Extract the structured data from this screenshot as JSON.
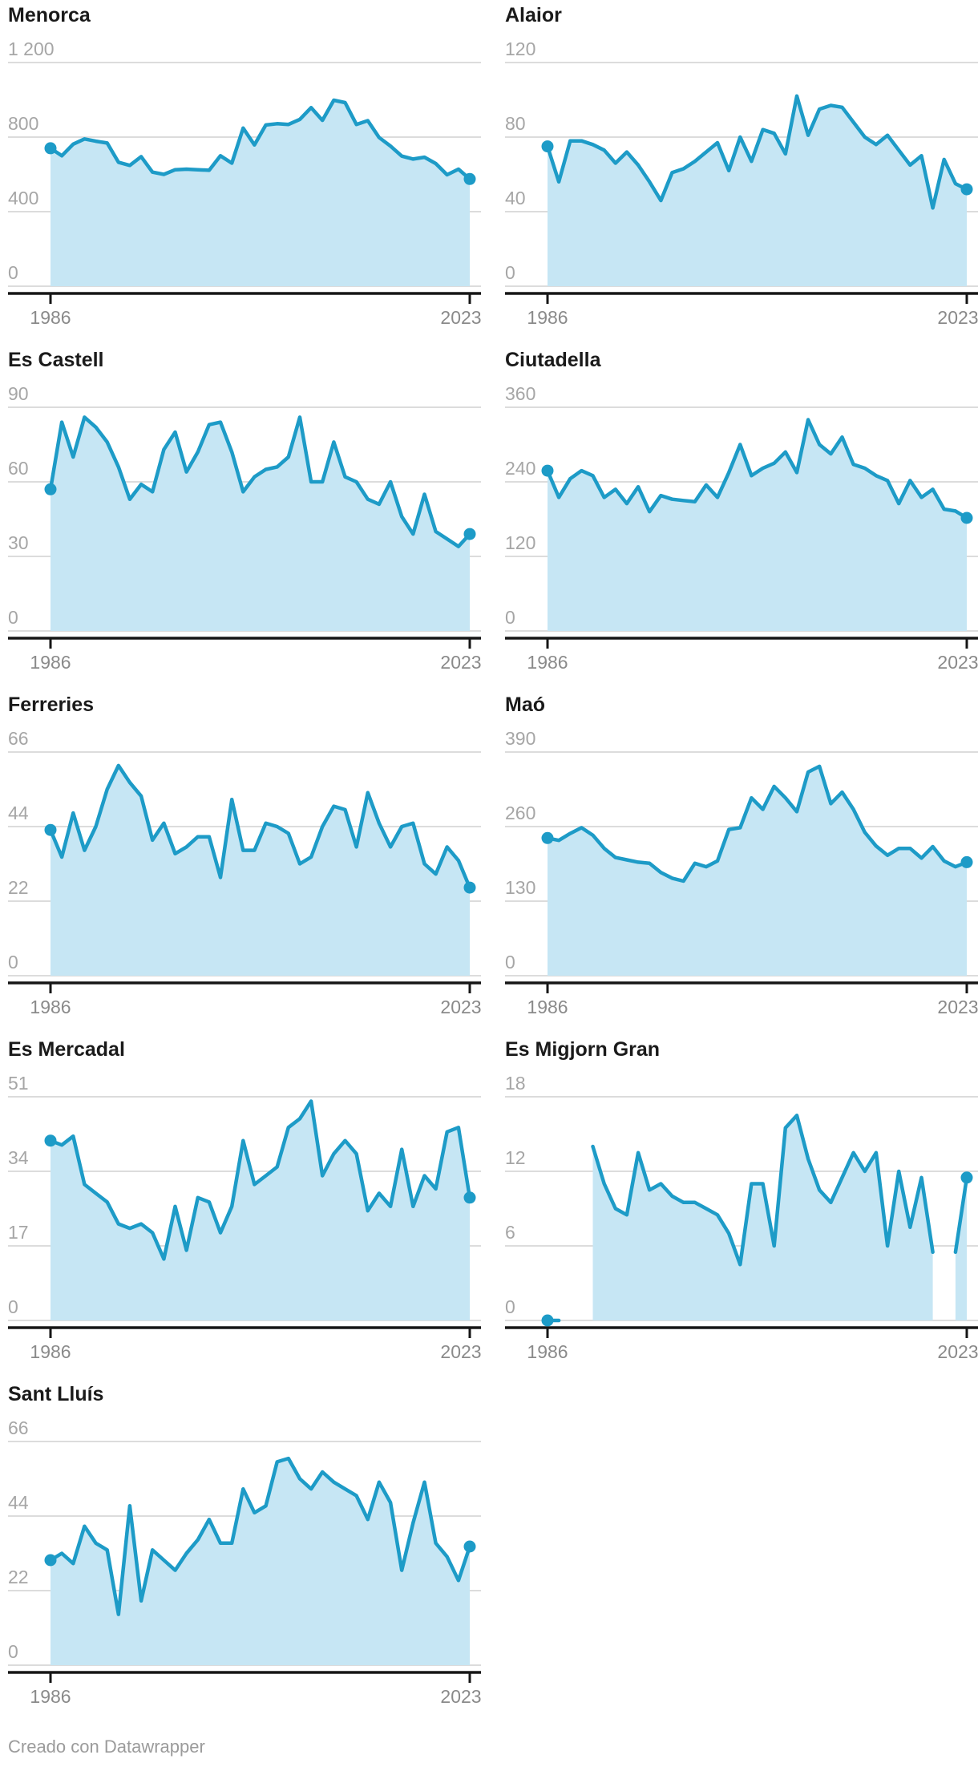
{
  "footer": {
    "credit": "Creado con Datawrapper"
  },
  "colors": {
    "line": "#1d9bc7",
    "fill": "#c6e6f4",
    "grid": "#dcdcdc",
    "axis": "#161616",
    "title": "#1a1a1a",
    "y_label": "#a6a6a6",
    "x_label": "#8a8a8a",
    "credit": "#9b9b9b"
  },
  "x_axis": {
    "start_label": "1986",
    "end_label": "2023",
    "start_year": 1986,
    "end_year": 2023
  },
  "chart_data": [
    {
      "type": "area",
      "title": "Menorca",
      "xlabel": "",
      "ylabel": "",
      "x_start": 1986,
      "x_end": 2023,
      "ylim": [
        0,
        1200
      ],
      "grid": true,
      "y_gridlines": [
        1200,
        800,
        400,
        0
      ],
      "y_tick_labels": [
        "1 200",
        "800",
        "400",
        "0"
      ],
      "x_tick_labels": [
        "1986",
        "2023"
      ],
      "endpoint_dots": true,
      "values": [
        740,
        700,
        762,
        790,
        778,
        768,
        665,
        648,
        695,
        612,
        600,
        625,
        628,
        625,
        622,
        700,
        660,
        848,
        758,
        865,
        872,
        868,
        895,
        958,
        890,
        998,
        985,
        868,
        888,
        798,
        752,
        698,
        682,
        692,
        658,
        598,
        628,
        575
      ]
    },
    {
      "type": "area",
      "title": "Alaior",
      "xlabel": "",
      "ylabel": "",
      "x_start": 1986,
      "x_end": 2023,
      "ylim": [
        0,
        120
      ],
      "grid": true,
      "y_gridlines": [
        120,
        80,
        40,
        0
      ],
      "y_tick_labels": [
        "120",
        "80",
        "40",
        "0"
      ],
      "x_tick_labels": [
        "1986",
        "2023"
      ],
      "endpoint_dots": true,
      "values": [
        75,
        56,
        78,
        78,
        76,
        73,
        66,
        72,
        65,
        56,
        46,
        61,
        63,
        67,
        72,
        77,
        62,
        80,
        67,
        84,
        82,
        71,
        102,
        81,
        95,
        97,
        96,
        88,
        80,
        76,
        81,
        73,
        65,
        70,
        42,
        68,
        55,
        52
      ]
    },
    {
      "type": "area",
      "title": "Es Castell",
      "xlabel": "",
      "ylabel": "",
      "x_start": 1986,
      "x_end": 2023,
      "ylim": [
        0,
        90
      ],
      "grid": true,
      "y_gridlines": [
        90,
        60,
        30,
        0
      ],
      "y_tick_labels": [
        "90",
        "60",
        "30",
        "0"
      ],
      "x_tick_labels": [
        "1986",
        "2023"
      ],
      "endpoint_dots": true,
      "values": [
        57,
        84,
        70,
        86,
        82,
        76,
        66,
        53,
        59,
        56,
        73,
        80,
        64,
        72,
        83,
        84,
        72,
        56,
        62,
        65,
        66,
        70,
        86,
        60,
        60,
        76,
        62,
        60,
        53,
        51,
        60,
        46,
        39,
        55,
        40,
        37,
        34,
        39
      ]
    },
    {
      "type": "area",
      "title": "Ciutadella",
      "xlabel": "",
      "ylabel": "",
      "x_start": 1986,
      "x_end": 2023,
      "ylim": [
        0,
        360
      ],
      "grid": true,
      "y_gridlines": [
        360,
        240,
        120,
        0
      ],
      "y_tick_labels": [
        "360",
        "240",
        "120",
        "0"
      ],
      "x_tick_labels": [
        "1986",
        "2023"
      ],
      "endpoint_dots": true,
      "values": [
        258,
        215,
        245,
        258,
        250,
        215,
        228,
        205,
        232,
        192,
        218,
        212,
        210,
        208,
        235,
        215,
        255,
        300,
        250,
        262,
        270,
        288,
        255,
        340,
        300,
        285,
        312,
        268,
        262,
        250,
        242,
        205,
        242,
        215,
        228,
        196,
        193,
        182
      ]
    },
    {
      "type": "area",
      "title": "Ferreries",
      "xlabel": "",
      "ylabel": "",
      "x_start": 1986,
      "x_end": 2023,
      "ylim": [
        0,
        66
      ],
      "grid": true,
      "y_gridlines": [
        66,
        44,
        22,
        0
      ],
      "y_tick_labels": [
        "66",
        "44",
        "22",
        "0"
      ],
      "x_tick_labels": [
        "1986",
        "2023"
      ],
      "endpoint_dots": true,
      "values": [
        43,
        35,
        48,
        37,
        44,
        55,
        62,
        57,
        53,
        40,
        45,
        36,
        38,
        41,
        41,
        29,
        52,
        37,
        37,
        45,
        44,
        42,
        33,
        35,
        44,
        50,
        49,
        38,
        54,
        45,
        38,
        44,
        45,
        33,
        30,
        38,
        34,
        26
      ]
    },
    {
      "type": "area",
      "title": "Maó",
      "xlabel": "",
      "ylabel": "",
      "x_start": 1986,
      "x_end": 2023,
      "ylim": [
        0,
        390
      ],
      "grid": true,
      "y_gridlines": [
        390,
        260,
        130,
        0
      ],
      "y_tick_labels": [
        "390",
        "260",
        "130",
        "0"
      ],
      "x_tick_labels": [
        "1986",
        "2023"
      ],
      "endpoint_dots": true,
      "values": [
        240,
        236,
        248,
        258,
        245,
        222,
        206,
        202,
        198,
        196,
        180,
        170,
        165,
        196,
        190,
        200,
        255,
        258,
        310,
        290,
        330,
        310,
        286,
        355,
        365,
        300,
        320,
        290,
        250,
        226,
        210,
        222,
        222,
        205,
        225,
        200,
        190,
        198
      ]
    },
    {
      "type": "area",
      "title": "Es Mercadal",
      "xlabel": "",
      "ylabel": "",
      "x_start": 1986,
      "x_end": 2023,
      "ylim": [
        0,
        51
      ],
      "grid": true,
      "y_gridlines": [
        51,
        34,
        17,
        0
      ],
      "y_tick_labels": [
        "51",
        "34",
        "17",
        "0"
      ],
      "x_tick_labels": [
        "1986",
        "2023"
      ],
      "endpoint_dots": true,
      "values": [
        41,
        40,
        42,
        31,
        29,
        27,
        22,
        21,
        22,
        20,
        14,
        26,
        16,
        28,
        27,
        20,
        26,
        41,
        31,
        33,
        35,
        44,
        46,
        50,
        33,
        38,
        41,
        38,
        25,
        29,
        26,
        39,
        26,
        33,
        30,
        43,
        44,
        28
      ]
    },
    {
      "type": "area",
      "title": "Es Migjorn Gran",
      "xlabel": "",
      "ylabel": "",
      "x_start": 1986,
      "x_end": 2023,
      "ylim": [
        0,
        18
      ],
      "grid": true,
      "y_gridlines": [
        18,
        12,
        6,
        0
      ],
      "y_tick_labels": [
        "18",
        "12",
        "6",
        "0"
      ],
      "x_tick_labels": [
        "1986",
        "2023"
      ],
      "endpoint_dots": true,
      "values": [
        0,
        0,
        null,
        null,
        14,
        11,
        9,
        8.5,
        13.5,
        10.5,
        11,
        10,
        9.5,
        9.5,
        9,
        8.5,
        7,
        4.5,
        11,
        11,
        6,
        15.5,
        16.5,
        13,
        10.5,
        9.5,
        11.5,
        13.5,
        12,
        13.5,
        6,
        12,
        7.5,
        11.5,
        5.5,
        null,
        5.5,
        11.5
      ]
    },
    {
      "type": "area",
      "title": "Sant Lluís",
      "xlabel": "",
      "ylabel": "",
      "x_start": 1986,
      "x_end": 2023,
      "ylim": [
        0,
        66
      ],
      "grid": true,
      "y_gridlines": [
        66,
        44,
        22,
        0
      ],
      "y_tick_labels": [
        "66",
        "44",
        "22",
        "0"
      ],
      "x_tick_labels": [
        "1986",
        "2023"
      ],
      "endpoint_dots": true,
      "values": [
        31,
        33,
        30,
        41,
        36,
        34,
        15,
        47,
        19,
        34,
        31,
        28,
        33,
        37,
        43,
        36,
        36,
        52,
        45,
        47,
        60,
        61,
        55,
        52,
        57,
        54,
        52,
        50,
        43,
        54,
        48,
        28,
        42,
        54,
        36,
        32,
        25,
        35
      ]
    }
  ]
}
